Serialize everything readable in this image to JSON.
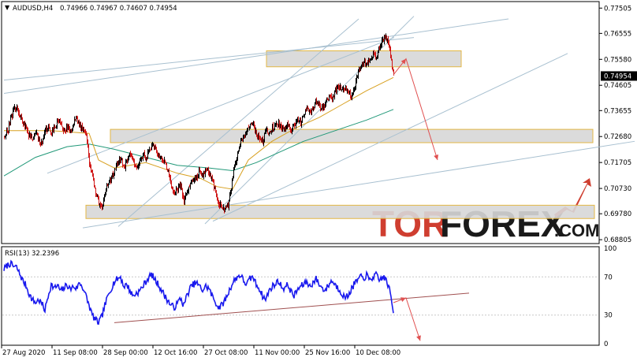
{
  "colors": {
    "bull": "#000000",
    "bear": "#d01818",
    "ma_orange": "#d8a020",
    "ma_teal": "#209878",
    "rsi_line": "#1a1aee",
    "rsi_trend": "#a05050",
    "channel": "#a8c0d0",
    "zone_fill": "#d8d8d8",
    "zone_border": "#e0b030",
    "arrow": "#e05050",
    "logo_red": "#cf3e30",
    "logo_dark": "#1a1a1a"
  },
  "header": {
    "triangle": "▼",
    "symbol_tf": "AUDUSD,H4",
    "ohlc": "0.74966 0.74967 0.74607 0.74954"
  },
  "logo": {
    "part1": "TOR",
    "part2": "FOREX",
    "part3": ".COM",
    "arrow_icon": "rising-arrow-icon"
  },
  "chart_data": [
    {
      "type": "candlestick",
      "instrument": "AUDUSD",
      "timeframe": "H4",
      "last_price": 0.74954,
      "price_axis_ticks": [
        0.77505,
        0.76555,
        0.7558,
        0.74605,
        0.73655,
        0.7268,
        0.71705,
        0.7073,
        0.6978,
        0.68805
      ],
      "price_axis_labels": [
        "0.77505",
        "0.76555",
        "0.75580",
        "0.74605",
        "0.73655",
        "0.72680",
        "0.71705",
        "0.70730",
        "0.69780",
        "0.68805"
      ],
      "current_price_label": "0.74954",
      "ylim": [
        0.6866,
        0.7775
      ],
      "x_labels": [
        "27 Aug 2020",
        "11 Sep 08:00",
        "28 Sep 00:00",
        "12 Oct 16:00",
        "27 Oct 08:00",
        "11 Nov 00:00",
        "25 Nov 16:00",
        "10 Dec 08:00"
      ],
      "close_path": [
        [
          0,
          0.727
        ],
        [
          4,
          0.7285
        ],
        [
          8,
          0.733
        ],
        [
          12,
          0.7372
        ],
        [
          16,
          0.7378
        ],
        [
          20,
          0.7345
        ],
        [
          24,
          0.732
        ],
        [
          28,
          0.73
        ],
        [
          32,
          0.7268
        ],
        [
          36,
          0.726
        ],
        [
          40,
          0.7282
        ],
        [
          44,
          0.725
        ],
        [
          48,
          0.724
        ],
        [
          52,
          0.729
        ],
        [
          56,
          0.73
        ],
        [
          60,
          0.728
        ],
        [
          64,
          0.73
        ],
        [
          68,
          0.733
        ],
        [
          72,
          0.731
        ],
        [
          76,
          0.729
        ],
        [
          80,
          0.73
        ],
        [
          84,
          0.7285
        ],
        [
          88,
          0.732
        ],
        [
          92,
          0.734
        ],
        [
          96,
          0.7305
        ],
        [
          100,
          0.73
        ],
        [
          104,
          0.728
        ],
        [
          108,
          0.717
        ],
        [
          112,
          0.712
        ],
        [
          116,
          0.706
        ],
        [
          120,
          0.702
        ],
        [
          124,
          0.7
        ],
        [
          128,
          0.705
        ],
        [
          132,
          0.71
        ],
        [
          136,
          0.711
        ],
        [
          140,
          0.714
        ],
        [
          144,
          0.717
        ],
        [
          148,
          0.719
        ],
        [
          152,
          0.715
        ],
        [
          156,
          0.718
        ],
        [
          160,
          0.72
        ],
        [
          164,
          0.717
        ],
        [
          168,
          0.715
        ],
        [
          172,
          0.718
        ],
        [
          176,
          0.72
        ],
        [
          180,
          0.719
        ],
        [
          184,
          0.721
        ],
        [
          188,
          0.7235
        ],
        [
          192,
          0.722
        ],
        [
          196,
          0.72
        ],
        [
          200,
          0.718
        ],
        [
          204,
          0.717
        ],
        [
          208,
          0.713
        ],
        [
          212,
          0.708
        ],
        [
          216,
          0.706
        ],
        [
          220,
          0.707
        ],
        [
          224,
          0.709
        ],
        [
          228,
          0.702
        ],
        [
          232,
          0.706
        ],
        [
          236,
          0.709
        ],
        [
          240,
          0.711
        ],
        [
          244,
          0.711
        ],
        [
          248,
          0.714
        ],
        [
          252,
          0.712
        ],
        [
          256,
          0.715
        ],
        [
          260,
          0.713
        ],
        [
          264,
          0.71
        ],
        [
          268,
          0.706
        ],
        [
          272,
          0.702
        ],
        [
          276,
          0.7
        ],
        [
          280,
          0.6995
        ],
        [
          284,
          0.701
        ],
        [
          288,
          0.707
        ],
        [
          292,
          0.716
        ],
        [
          296,
          0.72
        ],
        [
          300,
          0.725
        ],
        [
          304,
          0.727
        ],
        [
          308,
          0.7285
        ],
        [
          312,
          0.732
        ],
        [
          316,
          0.731
        ],
        [
          320,
          0.727
        ],
        [
          324,
          0.726
        ],
        [
          328,
          0.725
        ],
        [
          332,
          0.729
        ],
        [
          336,
          0.728
        ],
        [
          340,
          0.73
        ],
        [
          344,
          0.731
        ],
        [
          348,
          0.732
        ],
        [
          352,
          0.729
        ],
        [
          356,
          0.73
        ],
        [
          360,
          0.731
        ],
        [
          364,
          0.729
        ],
        [
          368,
          0.7315
        ],
        [
          372,
          0.733
        ],
        [
          376,
          0.732
        ],
        [
          380,
          0.735
        ],
        [
          384,
          0.737
        ],
        [
          388,
          0.736
        ],
        [
          392,
          0.738
        ],
        [
          396,
          0.74
        ],
        [
          400,
          0.7385
        ],
        [
          404,
          0.737
        ],
        [
          408,
          0.7395
        ],
        [
          412,
          0.742
        ],
        [
          416,
          0.741
        ],
        [
          420,
          0.744
        ],
        [
          424,
          0.746
        ],
        [
          428,
          0.744
        ],
        [
          432,
          0.745
        ],
        [
          436,
          0.743
        ],
        [
          440,
          0.742
        ],
        [
          444,
          0.745
        ],
        [
          448,
          0.75
        ],
        [
          452,
          0.753
        ],
        [
          456,
          0.755
        ],
        [
          460,
          0.7545
        ],
        [
          464,
          0.756
        ],
        [
          468,
          0.758
        ],
        [
          472,
          0.757
        ],
        [
          476,
          0.76
        ],
        [
          480,
          0.763
        ],
        [
          484,
          0.764
        ],
        [
          488,
          0.762
        ],
        [
          491,
          0.755
        ],
        [
          494,
          0.7495
        ]
      ],
      "ma_fast": [
        [
          0,
          0.729
        ],
        [
          60,
          0.729
        ],
        [
          108,
          0.728
        ],
        [
          120,
          0.718
        ],
        [
          140,
          0.715
        ],
        [
          180,
          0.717
        ],
        [
          220,
          0.713
        ],
        [
          250,
          0.711
        ],
        [
          270,
          0.708
        ],
        [
          290,
          0.707
        ],
        [
          310,
          0.718
        ],
        [
          340,
          0.725
        ],
        [
          370,
          0.73
        ],
        [
          400,
          0.734
        ],
        [
          430,
          0.739
        ],
        [
          460,
          0.744
        ],
        [
          494,
          0.749
        ]
      ],
      "ma_slow": [
        [
          0,
          0.712
        ],
        [
          40,
          0.719
        ],
        [
          80,
          0.723
        ],
        [
          108,
          0.724
        ],
        [
          140,
          0.722
        ],
        [
          180,
          0.719
        ],
        [
          220,
          0.716
        ],
        [
          260,
          0.715
        ],
        [
          290,
          0.714
        ],
        [
          320,
          0.717
        ],
        [
          350,
          0.721
        ],
        [
          380,
          0.725
        ],
        [
          420,
          0.729
        ],
        [
          460,
          0.733
        ],
        [
          494,
          0.737
        ]
      ],
      "zones": [
        [
          0.753,
          0.759
        ],
        [
          0.7245,
          0.7295
        ],
        [
          0.696,
          0.701
        ]
      ],
      "channel_lines": [
        [
          [
            0,
            0.743
          ],
          [
            640,
            0.771
          ]
        ],
        [
          [
            0,
            0.748
          ],
          [
            520,
            0.764
          ]
        ],
        [
          [
            100,
            0.6925
          ],
          [
            800,
            0.725
          ]
        ],
        [
          [
            255,
            0.694
          ],
          [
            520,
            0.772
          ]
        ],
        [
          [
            145,
            0.693
          ],
          [
            450,
            0.771
          ]
        ],
        [
          [
            55,
            0.713
          ],
          [
            495,
            0.764
          ]
        ],
        [
          [
            265,
            0.695
          ],
          [
            715,
            0.758
          ]
        ]
      ],
      "forecast_arrows": [
        [
          [
            494,
            0.75
          ],
          [
            510,
            0.756
          ],
          [
            550,
            0.718
          ]
        ]
      ]
    },
    {
      "type": "line",
      "indicator": "RSI",
      "label": "RSI(13) 32.2396",
      "value": 32.2396,
      "ylim": [
        0,
        100
      ],
      "levels": [
        100,
        70,
        30,
        0
      ],
      "level_labels": [
        "100",
        "70",
        "30",
        "0"
      ],
      "path": [
        [
          0,
          78
        ],
        [
          4,
          82
        ],
        [
          8,
          84
        ],
        [
          12,
          81
        ],
        [
          16,
          80
        ],
        [
          20,
          73
        ],
        [
          24,
          66
        ],
        [
          28,
          61
        ],
        [
          32,
          52
        ],
        [
          36,
          46
        ],
        [
          40,
          43
        ],
        [
          44,
          46
        ],
        [
          48,
          42
        ],
        [
          52,
          35
        ],
        [
          56,
          50
        ],
        [
          60,
          62
        ],
        [
          64,
          58
        ],
        [
          68,
          61
        ],
        [
          72,
          55
        ],
        [
          76,
          58
        ],
        [
          80,
          62
        ],
        [
          84,
          57
        ],
        [
          88,
          60
        ],
        [
          92,
          58
        ],
        [
          96,
          64
        ],
        [
          100,
          59
        ],
        [
          104,
          50
        ],
        [
          108,
          40
        ],
        [
          112,
          30
        ],
        [
          116,
          25
        ],
        [
          120,
          22
        ],
        [
          124,
          28
        ],
        [
          128,
          40
        ],
        [
          132,
          50
        ],
        [
          136,
          58
        ],
        [
          140,
          65
        ],
        [
          144,
          68
        ],
        [
          148,
          70
        ],
        [
          152,
          60
        ],
        [
          156,
          62
        ],
        [
          160,
          55
        ],
        [
          164,
          50
        ],
        [
          168,
          53
        ],
        [
          172,
          55
        ],
        [
          176,
          60
        ],
        [
          180,
          65
        ],
        [
          184,
          70
        ],
        [
          188,
          72
        ],
        [
          192,
          66
        ],
        [
          196,
          62
        ],
        [
          200,
          56
        ],
        [
          204,
          50
        ],
        [
          208,
          45
        ],
        [
          212,
          40
        ],
        [
          216,
          38
        ],
        [
          220,
          42
        ],
        [
          224,
          48
        ],
        [
          228,
          40
        ],
        [
          232,
          50
        ],
        [
          236,
          58
        ],
        [
          240,
          62
        ],
        [
          244,
          64
        ],
        [
          248,
          60
        ],
        [
          252,
          56
        ],
        [
          256,
          60
        ],
        [
          260,
          58
        ],
        [
          264,
          50
        ],
        [
          268,
          44
        ],
        [
          272,
          38
        ],
        [
          276,
          40
        ],
        [
          280,
          45
        ],
        [
          284,
          52
        ],
        [
          288,
          60
        ],
        [
          292,
          66
        ],
        [
          296,
          70
        ],
        [
          300,
          72
        ],
        [
          304,
          66
        ],
        [
          308,
          62
        ],
        [
          312,
          68
        ],
        [
          316,
          70
        ],
        [
          320,
          62
        ],
        [
          324,
          58
        ],
        [
          328,
          50
        ],
        [
          332,
          46
        ],
        [
          336,
          55
        ],
        [
          340,
          60
        ],
        [
          344,
          62
        ],
        [
          348,
          66
        ],
        [
          352,
          60
        ],
        [
          356,
          58
        ],
        [
          360,
          62
        ],
        [
          364,
          55
        ],
        [
          368,
          50
        ],
        [
          372,
          56
        ],
        [
          376,
          60
        ],
        [
          380,
          62
        ],
        [
          384,
          65
        ],
        [
          388,
          60
        ],
        [
          392,
          64
        ],
        [
          396,
          68
        ],
        [
          400,
          62
        ],
        [
          404,
          58
        ],
        [
          408,
          56
        ],
        [
          412,
          62
        ],
        [
          416,
          66
        ],
        [
          420,
          62
        ],
        [
          424,
          58
        ],
        [
          428,
          54
        ],
        [
          432,
          48
        ],
        [
          436,
          50
        ],
        [
          440,
          56
        ],
        [
          444,
          62
        ],
        [
          448,
          66
        ],
        [
          452,
          70
        ],
        [
          456,
          68
        ],
        [
          460,
          72
        ],
        [
          464,
          66
        ],
        [
          468,
          70
        ],
        [
          472,
          72
        ],
        [
          476,
          66
        ],
        [
          480,
          70
        ],
        [
          484,
          68
        ],
        [
          488,
          60
        ],
        [
          491,
          48
        ],
        [
          494,
          32
        ]
      ],
      "trend_line": [
        [
          140,
          22
        ],
        [
          590,
          53
        ]
      ],
      "forecast_arrows": [
        [
          [
            494,
            43
          ],
          [
            510,
            48
          ],
          [
            528,
            3
          ]
        ]
      ]
    }
  ]
}
